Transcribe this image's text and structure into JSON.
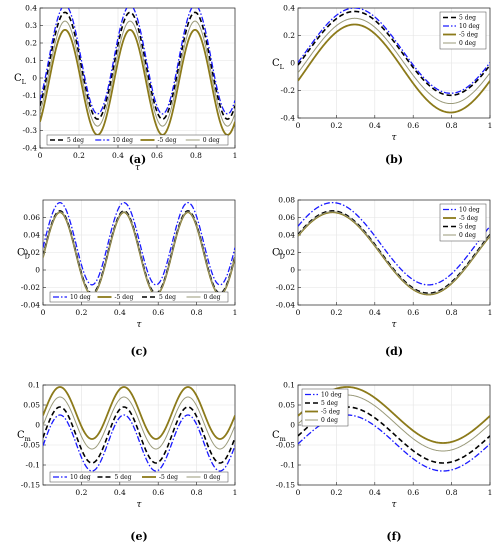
{
  "figure": {
    "panels": [
      {
        "label": "(a)",
        "ylabel_main": "C",
        "ylabel_sub": "L",
        "xlabel": "τ",
        "xlim": [
          0,
          1
        ],
        "ylim": [
          -0.4,
          0.4
        ],
        "xticks": [
          0,
          0.2,
          0.4,
          0.6,
          0.8,
          1
        ],
        "xtick_labels": [
          "0",
          "0.2",
          "0.4",
          "0.6",
          "0.8",
          "1"
        ],
        "yticks": [
          -0.4,
          -0.3,
          -0.2,
          -0.1,
          0,
          0.1,
          0.2,
          0.3,
          0.4
        ],
        "ytick_labels": [
          "-0.4",
          "-0.3",
          "-0.2",
          "-0.1",
          "0",
          "0.1",
          "0.2",
          "0.3",
          "0.4"
        ],
        "legend_position": "bottom",
        "legend_entries": [
          "5 deg",
          "10 deg",
          "-5 deg",
          "0 deg"
        ],
        "styles": [
          "5",
          "10",
          "-5",
          "0"
        ],
        "cycles": 3,
        "phase": 0.045,
        "offsets": [
          0.07,
          0.105,
          -0.025,
          0.025
        ],
        "amplitudes": [
          0.305,
          0.31,
          0.3,
          0.3
        ]
      },
      {
        "label": "(b)",
        "ylabel_main": "C",
        "ylabel_sub": "L",
        "xlabel": "τ",
        "xlim": [
          0,
          1
        ],
        "ylim": [
          -0.4,
          0.4
        ],
        "xticks": [
          0,
          0.2,
          0.4,
          0.6,
          0.8,
          1
        ],
        "xtick_labels": [
          "0",
          "0.2",
          "0.4",
          "0.6",
          "0.8",
          "1"
        ],
        "yticks": [
          -0.4,
          -0.2,
          0,
          0.2,
          0.4
        ],
        "ytick_labels": [
          "-0.4",
          "-0.2",
          "0",
          "0.2",
          "0.4"
        ],
        "legend_position": "top-right",
        "legend_entries": [
          "5 deg",
          "10 deg",
          "-5 deg",
          "0 deg"
        ],
        "styles": [
          "5",
          "10",
          "-5",
          "0"
        ],
        "cycles": 1,
        "phase": 0.045,
        "offsets": [
          0.07,
          0.09,
          -0.04,
          0.015
        ],
        "amplitudes": [
          0.305,
          0.31,
          0.32,
          0.31
        ]
      },
      {
        "label": "(c)",
        "ylabel_main": "C",
        "ylabel_sub": "D",
        "xlabel": "τ",
        "xlim": [
          0,
          1
        ],
        "ylim": [
          -0.04,
          0.08
        ],
        "xticks": [
          0,
          0.2,
          0.4,
          0.6,
          0.8,
          1
        ],
        "xtick_labels": [
          "0",
          "0.2",
          "0.4",
          "0.6",
          "0.8",
          "1"
        ],
        "yticks": [
          -0.04,
          -0.02,
          0,
          0.02,
          0.04,
          0.06
        ],
        "ytick_labels": [
          "-0.04",
          "-0.02",
          "0",
          "0.02",
          "0.04",
          "0.06"
        ],
        "legend_position": "bottom",
        "legend_entries": [
          "10 deg",
          "-5 deg",
          "5 deg",
          "0 deg"
        ],
        "styles": [
          "10",
          "-5",
          "5",
          "0"
        ],
        "cycles": 3,
        "phase": 0.005,
        "offsets": [
          0.03,
          0.019,
          0.0205,
          0.0195
        ],
        "amplitudes": [
          0.047,
          0.047,
          0.047,
          0.047
        ]
      },
      {
        "label": "(d)",
        "ylabel_main": "C",
        "ylabel_sub": "D",
        "xlabel": "τ",
        "xlim": [
          0,
          1
        ],
        "ylim": [
          -0.04,
          0.08
        ],
        "xticks": [
          0,
          0.2,
          0.4,
          0.6,
          0.8,
          1
        ],
        "xtick_labels": [
          "0",
          "0.2",
          "0.4",
          "0.6",
          "0.8",
          "1"
        ],
        "yticks": [
          -0.04,
          -0.02,
          0,
          0.02,
          0.04,
          0.06,
          0.08
        ],
        "ytick_labels": [
          "-0.04",
          "-0.02",
          "0",
          "0.02",
          "0.04",
          "0.06",
          "0.08"
        ],
        "legend_position": "top-right",
        "legend_entries": [
          "10 deg",
          "-5 deg",
          "5 deg",
          "0 deg"
        ],
        "styles": [
          "10",
          "-5",
          "5",
          "0"
        ],
        "cycles": 1,
        "phase": -0.07,
        "offsets": [
          0.03,
          0.019,
          0.0205,
          0.0195
        ],
        "amplitudes": [
          0.047,
          0.047,
          0.047,
          0.047
        ]
      },
      {
        "label": "(e)",
        "ylabel_main": "C",
        "ylabel_sub": "m",
        "xlabel": "τ",
        "xlim": [
          0,
          1
        ],
        "ylim": [
          -0.15,
          0.1
        ],
        "xticks": [
          0.2,
          0.4,
          0.6,
          0.8,
          1
        ],
        "xtick_labels": [
          "0.2",
          "0.4",
          "0.6",
          "0.8",
          "1"
        ],
        "yticks": [
          -0.15,
          -0.1,
          -0.05,
          0,
          0.05,
          0.1
        ],
        "ytick_labels": [
          "-0.15",
          "-0.1",
          "-0.05",
          "0",
          "0.05",
          "0.1"
        ],
        "legend_position": "bottom",
        "legend_entries": [
          "10 deg",
          "5 deg",
          "-5 deg",
          "0 deg"
        ],
        "styles": [
          "10",
          "5",
          "-5",
          "0"
        ],
        "cycles": 3,
        "phase": 0.005,
        "offsets": [
          -0.045,
          -0.025,
          0.03,
          0.005
        ],
        "amplitudes": [
          0.07,
          0.07,
          0.065,
          0.065
        ]
      },
      {
        "label": "(f)",
        "ylabel_main": "C",
        "ylabel_sub": "m",
        "xlabel": "τ",
        "xlim": [
          0,
          1
        ],
        "ylim": [
          -0.15,
          0.1
        ],
        "xticks": [
          0,
          0.2,
          0.4,
          0.6,
          0.8,
          1
        ],
        "xtick_labels": [
          "0",
          "0.2",
          "0.4",
          "0.6",
          "0.8",
          "1"
        ],
        "yticks": [
          -0.15,
          -0.1,
          -0.05,
          0,
          0.05,
          0.1
        ],
        "ytick_labels": [
          "-0.15",
          "-0.1",
          "-0.05",
          "0",
          "0.05",
          "0.1"
        ],
        "legend_position": "top-left",
        "legend_entries": [
          "10 deg",
          "5 deg",
          "-5 deg",
          "0 deg"
        ],
        "styles": [
          "10",
          "5",
          "-5",
          "0"
        ],
        "cycles": 1,
        "phase": 0.005,
        "offsets": [
          -0.045,
          -0.025,
          0.025,
          0.005
        ],
        "amplitudes": [
          0.07,
          0.07,
          0.07,
          0.07
        ]
      }
    ]
  },
  "series_styles": {
    "5": {
      "color": "#000000",
      "dash": "5,3",
      "width": 1.6
    },
    "10": {
      "color": "#1a1aff",
      "dash": "6,2,1.5,2",
      "width": 1.3
    },
    "-5": {
      "color": "#8c7a1a",
      "dash": "",
      "width": 1.8
    },
    "0": {
      "color": "#9a9a7a",
      "dash": "",
      "width": 1.0
    }
  },
  "chart_data": [
    {
      "type": "line",
      "panel": "(a)",
      "ylabel": "C_L",
      "xlabel": "τ",
      "xlim": [
        0,
        1
      ],
      "ylim": [
        -0.4,
        0.4
      ],
      "x": [
        0,
        0.1,
        0.25,
        0.43,
        0.59,
        0.77,
        0.93,
        1
      ],
      "series": [
        {
          "name": "5 deg",
          "values": [
            0.0,
            0.37,
            -0.24,
            0.37,
            -0.24,
            0.37,
            -0.24,
            0.03
          ]
        },
        {
          "name": "10 deg",
          "values": [
            0.02,
            0.41,
            -0.21,
            0.41,
            -0.21,
            0.41,
            -0.21,
            0.06
          ]
        },
        {
          "name": "-5 deg",
          "values": [
            -0.09,
            0.27,
            -0.33,
            0.27,
            -0.33,
            0.27,
            -0.33,
            -0.06
          ]
        },
        {
          "name": "0 deg",
          "values": [
            -0.04,
            0.32,
            -0.28,
            0.32,
            -0.28,
            0.32,
            -0.28,
            -0.01
          ]
        }
      ]
    },
    {
      "type": "line",
      "panel": "(b)",
      "ylabel": "C_L",
      "xlabel": "τ",
      "xlim": [
        0,
        1
      ],
      "ylim": [
        -0.4,
        0.4
      ],
      "x": [
        0,
        0.2,
        0.4,
        0.6,
        0.8,
        1
      ],
      "series": [
        {
          "name": "5 deg",
          "values": [
            0.16,
            0.37,
            0.15,
            -0.14,
            -0.23,
            0.14
          ]
        },
        {
          "name": "10 deg",
          "values": [
            0.19,
            0.4,
            0.18,
            -0.12,
            -0.21,
            0.18
          ]
        },
        {
          "name": "-5 deg",
          "values": [
            0.08,
            0.28,
            0.06,
            -0.24,
            -0.36,
            0.07
          ]
        },
        {
          "name": "0 deg",
          "values": [
            0.12,
            0.32,
            0.11,
            -0.19,
            -0.29,
            0.1
          ]
        }
      ]
    },
    {
      "type": "line",
      "panel": "(c)",
      "ylabel": "C_D",
      "xlabel": "τ",
      "xlim": [
        0,
        1
      ],
      "ylim": [
        -0.04,
        0.08
      ],
      "x": [
        0,
        0.1,
        0.26,
        0.43,
        0.59,
        0.76,
        0.92,
        1
      ],
      "series": [
        {
          "name": "10 deg",
          "values": [
            0.01,
            0.077,
            -0.017,
            0.077,
            -0.017,
            0.077,
            -0.017,
            0.02
          ]
        },
        {
          "name": "-5 deg",
          "values": [
            0.01,
            0.066,
            -0.028,
            0.066,
            -0.028,
            0.066,
            -0.028,
            0.01
          ]
        },
        {
          "name": "5 deg",
          "values": [
            0.01,
            0.067,
            -0.027,
            0.067,
            -0.027,
            0.067,
            -0.027,
            0.01
          ]
        },
        {
          "name": "0 deg",
          "values": [
            0.01,
            0.066,
            -0.028,
            0.066,
            -0.028,
            0.066,
            -0.028,
            0.01
          ]
        }
      ]
    },
    {
      "type": "line",
      "panel": "(d)",
      "ylabel": "C_D",
      "xlabel": "τ",
      "xlim": [
        0,
        1
      ],
      "ylim": [
        -0.04,
        0.08
      ],
      "x": [
        0,
        0.17,
        0.4,
        0.67,
        0.85,
        1
      ],
      "series": [
        {
          "name": "10 deg",
          "values": [
            0.052,
            0.077,
            0.04,
            -0.017,
            -0.003,
            0.05
          ]
        },
        {
          "name": "-5 deg",
          "values": [
            0.043,
            0.066,
            0.03,
            -0.028,
            -0.013,
            0.04
          ]
        },
        {
          "name": "5 deg",
          "values": [
            0.044,
            0.067,
            0.031,
            -0.027,
            -0.012,
            0.041
          ]
        },
        {
          "name": "0 deg",
          "values": [
            0.043,
            0.066,
            0.03,
            -0.028,
            -0.013,
            0.04
          ]
        }
      ]
    },
    {
      "type": "line",
      "panel": "(e)",
      "ylabel": "C_m",
      "xlabel": "τ",
      "xlim": [
        0,
        1
      ],
      "ylim": [
        -0.15,
        0.1
      ],
      "x": [
        0,
        0.09,
        0.25,
        0.42,
        0.59,
        0.75,
        0.92,
        1
      ],
      "series": [
        {
          "name": "10 deg",
          "values": [
            -0.05,
            0.025,
            -0.115,
            0.025,
            -0.115,
            0.025,
            -0.115,
            -0.08
          ]
        },
        {
          "name": "5 deg",
          "values": [
            -0.03,
            0.045,
            -0.095,
            0.045,
            -0.095,
            0.045,
            -0.095,
            -0.06
          ]
        },
        {
          "name": "-5 deg",
          "values": [
            0.02,
            0.095,
            -0.035,
            0.095,
            -0.035,
            0.095,
            -0.035,
            -0.01
          ]
        },
        {
          "name": "0 deg",
          "values": [
            -0.01,
            0.07,
            -0.06,
            0.07,
            -0.06,
            0.07,
            -0.06,
            -0.03
          ]
        }
      ]
    },
    {
      "type": "line",
      "panel": "(f)",
      "ylabel": "C_m",
      "xlabel": "τ",
      "xlim": [
        0,
        1
      ],
      "ylim": [
        -0.15,
        0.1
      ],
      "x": [
        0,
        0.25,
        0.5,
        0.75,
        1
      ],
      "series": [
        {
          "name": "10 deg",
          "values": [
            -0.05,
            0.025,
            -0.045,
            -0.115,
            -0.05
          ]
        },
        {
          "name": "5 deg",
          "values": [
            -0.03,
            0.045,
            -0.025,
            -0.095,
            -0.03
          ]
        },
        {
          "name": "-5 deg",
          "values": [
            0.02,
            0.095,
            0.025,
            -0.045,
            0.02
          ]
        },
        {
          "name": "0 deg",
          "values": [
            0.0,
            0.07,
            0.005,
            -0.065,
            0.0
          ]
        }
      ]
    }
  ]
}
